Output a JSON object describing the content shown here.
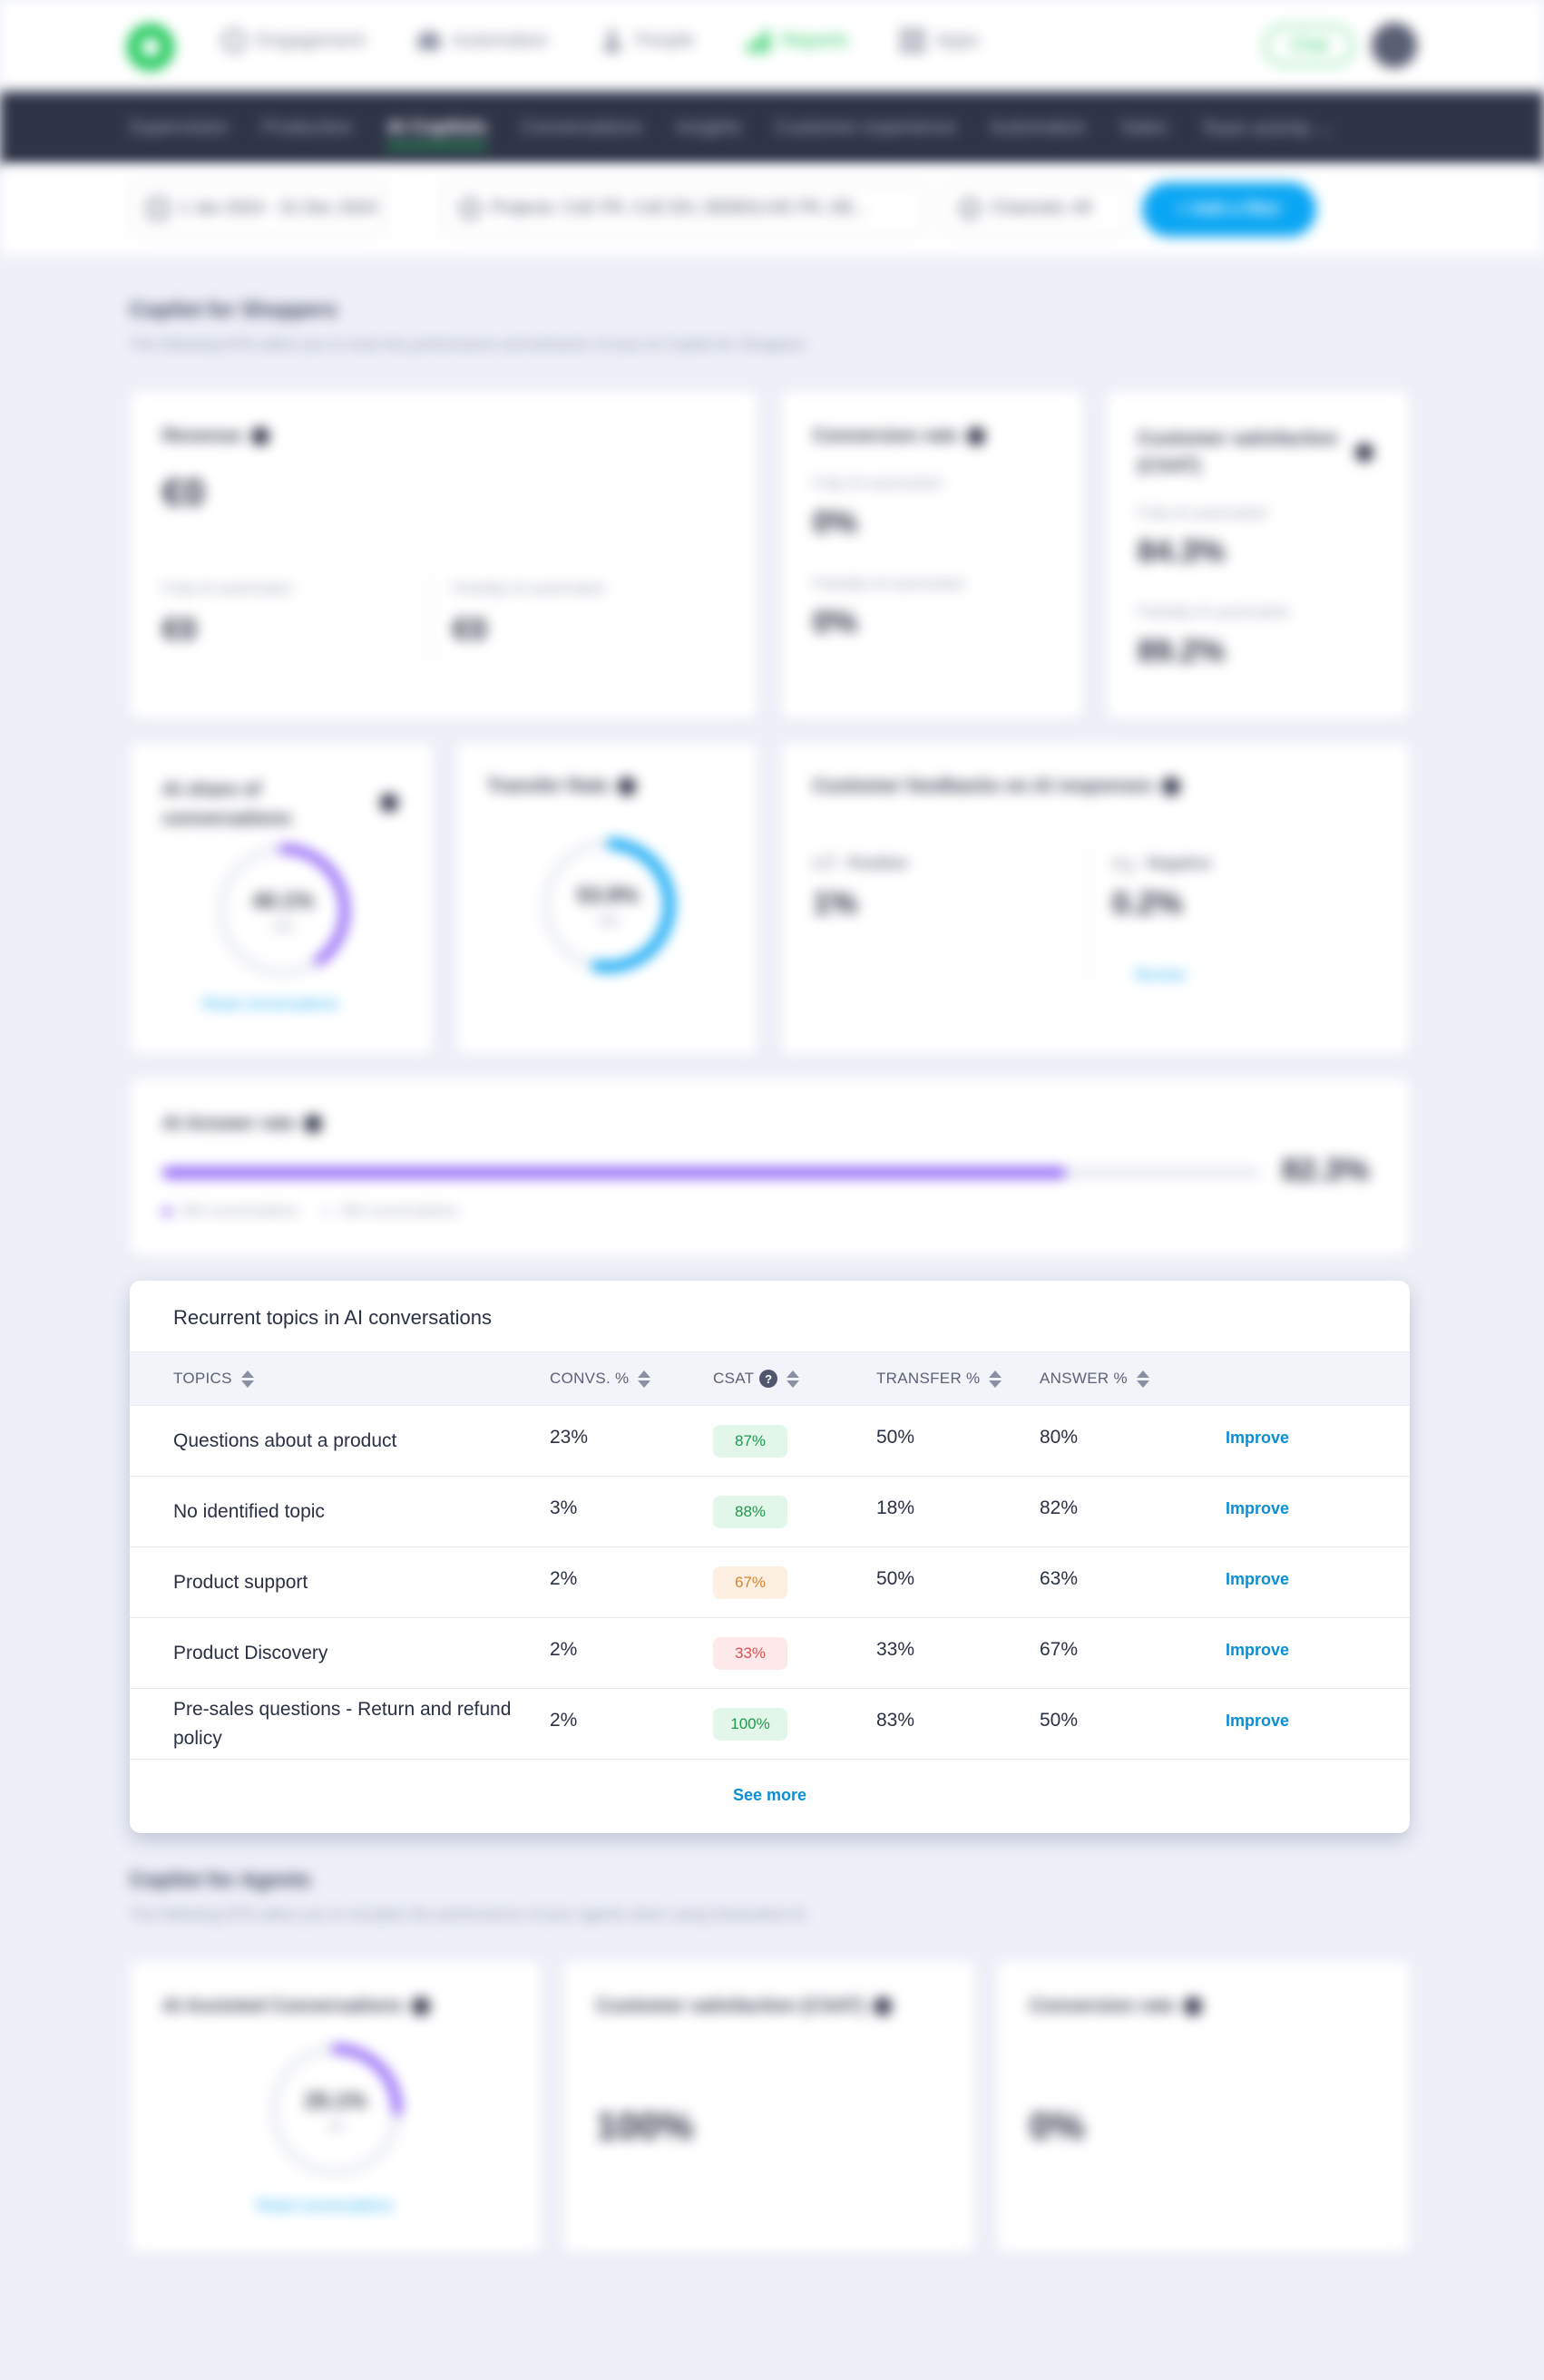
{
  "topnav": {
    "items": [
      {
        "label": "Engagement",
        "icon": "target-icon"
      },
      {
        "label": "Automation",
        "icon": "cloud-icon"
      },
      {
        "label": "People",
        "icon": "person-icon"
      },
      {
        "label": "Reports",
        "icon": "bar-chart-icon",
        "active": true
      },
      {
        "label": "Apps",
        "icon": "grid-icon"
      }
    ],
    "chat_label": "Chat"
  },
  "subnav": {
    "items": [
      "Supervision",
      "Production",
      "AI Copilots",
      "Conversations",
      "Insights",
      "Customer experience",
      "Automation",
      "Sales",
      "Team activity"
    ],
    "active": "AI Copilots"
  },
  "filters": {
    "date": "1 Jan 2024 - 31 Dec 2024",
    "projects": "Projects: CxE FR, CxE EN, DEMOLIVE FR, DE...",
    "channels": "Channels: All",
    "add": "+ Add a filter"
  },
  "shoppers": {
    "title": "Copilot for Shoppers",
    "subtitle": "The following KPIs allow you to track the performance and behavior of your AI Copilot for Shoppers",
    "revenue": {
      "title": "Revenue",
      "value": "€0",
      "fully_label": "Fully AI-automated",
      "fully_value": "€0",
      "partially_label": "Partially AI-automated",
      "partially_value": "€0"
    },
    "conversion": {
      "title": "Conversion rate",
      "fully_label": "Fully AI-automated",
      "fully_value": "0%",
      "partially_label": "Partially AI-automated",
      "partially_value": "0%"
    },
    "csat": {
      "title": "Customer satisfaction (CSAT)",
      "fully_label": "Fully AI-automated",
      "fully_value": "84.3%",
      "partially_label": "Partially AI-automated",
      "partially_value": "89.2%"
    },
    "ai_share": {
      "title": "AI share of conversations",
      "value": "40.1%",
      "count": "345",
      "fraction": 0.401,
      "link": "Read conversations"
    },
    "transfer": {
      "title": "Transfer Rate",
      "value": "53.9%",
      "count": "186",
      "fraction": 0.539
    },
    "feedback": {
      "title": "Customer feedbacks on AI responses",
      "positive_label": "Positive",
      "positive_value": "1%",
      "negative_label": "Negative",
      "negative_value": "0.2%",
      "review": "Review"
    },
    "answer_rate": {
      "title": "AI Answer rate",
      "value": "82.3%",
      "fraction": 0.823,
      "legend_a": "284 conversations",
      "legend_b": "345 conversations"
    }
  },
  "topics": {
    "title": "Recurrent topics in AI conversations",
    "columns": {
      "topics": "TOPICS",
      "convs": "CONVS. %",
      "csat": "CSAT",
      "transfer": "TRANSFER %",
      "answer": "ANSWER %"
    },
    "rows": [
      {
        "topic": "Questions about a product",
        "convs": "23%",
        "csat": "87%",
        "csat_level": "green",
        "transfer": "50%",
        "answer": "80%",
        "action": "Improve"
      },
      {
        "topic": "No identified topic",
        "convs": "3%",
        "csat": "88%",
        "csat_level": "green",
        "transfer": "18%",
        "answer": "82%",
        "action": "Improve"
      },
      {
        "topic": "Product support",
        "convs": "2%",
        "csat": "67%",
        "csat_level": "orange",
        "transfer": "50%",
        "answer": "63%",
        "action": "Improve"
      },
      {
        "topic": "Product Discovery",
        "convs": "2%",
        "csat": "33%",
        "csat_level": "red",
        "transfer": "33%",
        "answer": "67%",
        "action": "Improve"
      },
      {
        "topic": "Pre-sales questions - Return and refund policy",
        "convs": "2%",
        "csat": "100%",
        "csat_level": "green",
        "transfer": "83%",
        "answer": "50%",
        "action": "Improve"
      }
    ],
    "see_more": "See more"
  },
  "agents": {
    "title": "Copilot for Agents",
    "subtitle": "The following KPIs allow you to visualize the performance of your agents when using Generative AI",
    "assisted": {
      "title": "AI Assisted Conversations",
      "value": "25.1%",
      "count": "93",
      "fraction": 0.251,
      "link": "Read conversations"
    },
    "csat": {
      "title": "Customer satisfaction (CSAT)",
      "value": "100%"
    },
    "conversion": {
      "title": "Conversion rate",
      "value": "0%"
    }
  },
  "colors": {
    "brand_green": "#1ec95a",
    "accent_blue": "#0aa6f4",
    "purple": "#8a5cf6",
    "dark_nav": "#2f3447"
  }
}
